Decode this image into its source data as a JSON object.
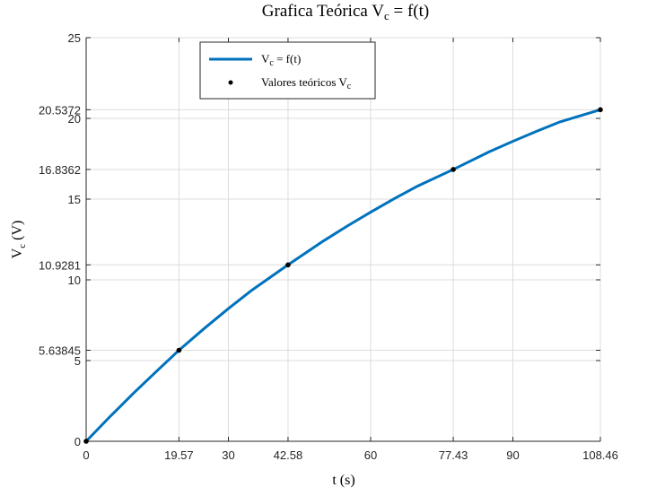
{
  "chart_data": {
    "type": "line",
    "title_main": "Grafica Teórica V",
    "title_sub": "c",
    "title_tail": " = f(t)",
    "xlabel": "t (s)",
    "ylabel_main": "V",
    "ylabel_sub": "c",
    "ylabel_tail": " (V)",
    "xlim": [
      0,
      108.46
    ],
    "ylim": [
      0,
      25
    ],
    "x_ticks": [
      0,
      19.57,
      30,
      42.58,
      60,
      77.43,
      90,
      108.46
    ],
    "x_tick_labels": [
      "0",
      "19.57",
      "30",
      "42.58",
      "60",
      "77.43",
      "90",
      "108.46"
    ],
    "y_ticks": [
      0,
      5,
      5.63845,
      10,
      10.9281,
      15,
      16.8362,
      20,
      20.5372,
      25
    ],
    "y_tick_labels": [
      "0",
      "5",
      "5.63845",
      "10",
      "10.9281",
      "15",
      "16.8362",
      "20",
      "20.5372",
      "25"
    ],
    "grid": true,
    "legend_position": "top-left",
    "series": [
      {
        "name_main": "V",
        "name_sub": "c",
        "name_tail": " = f(t)",
        "kind": "line",
        "color": "#0072BD",
        "x": [
          0,
          5,
          10,
          15,
          19.57,
          25,
          30,
          35,
          42.58,
          50,
          55,
          60,
          65,
          70,
          77.43,
          85,
          90,
          95,
          100,
          108.46
        ],
        "y": [
          0,
          1.52,
          2.98,
          4.38,
          5.63845,
          7.01,
          8.22,
          9.37,
          10.9281,
          12.4,
          13.32,
          14.19,
          15.03,
          15.82,
          16.8362,
          17.93,
          18.58,
          19.2,
          19.79,
          20.5372
        ]
      },
      {
        "name_main": "Valores teóricos V",
        "name_sub": "c",
        "name_tail": "",
        "kind": "markers",
        "color": "#000000",
        "x": [
          0,
          19.57,
          42.58,
          77.43,
          108.46
        ],
        "y": [
          0,
          5.63845,
          10.9281,
          16.8362,
          20.5372
        ]
      }
    ]
  }
}
